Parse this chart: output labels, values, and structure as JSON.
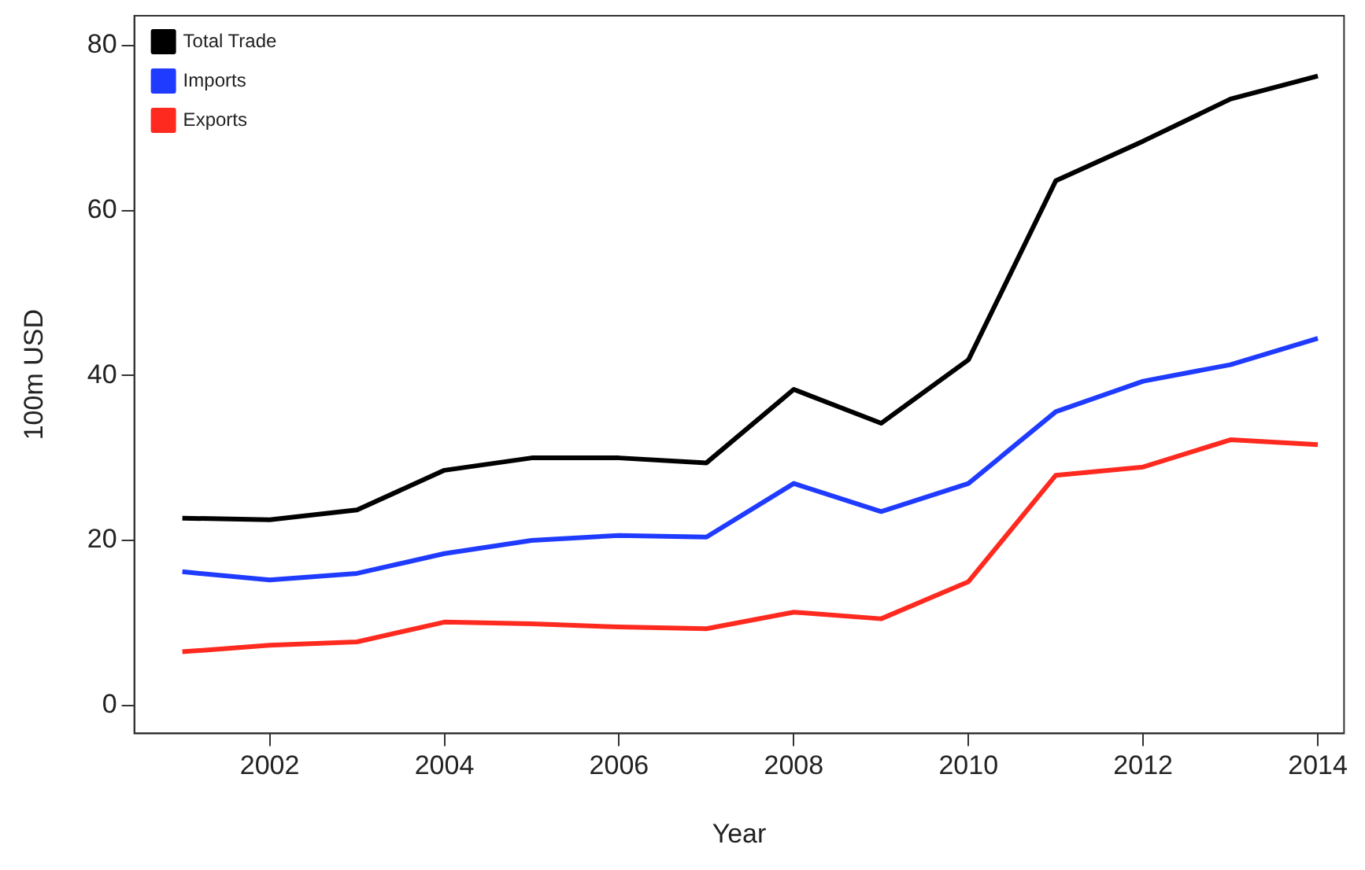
{
  "chart_data": {
    "type": "line",
    "xlabel": "Year",
    "ylabel": "100m USD",
    "x": [
      2001,
      2002,
      2003,
      2004,
      2005,
      2006,
      2007,
      2008,
      2009,
      2010,
      2011,
      2012,
      2013,
      2014
    ],
    "series": [
      {
        "name": "Total Trade",
        "color": "#000000",
        "values": [
          22.7,
          22.5,
          23.7,
          28.5,
          30,
          30,
          29.4,
          38.3,
          34.2,
          41.9,
          63.6,
          68.4,
          73.5,
          76.3
        ]
      },
      {
        "name": "Imports",
        "color": "#1f3bff",
        "values": [
          16.2,
          15.2,
          16,
          18.4,
          20,
          20.6,
          20.4,
          26.9,
          23.5,
          26.9,
          35.6,
          39.3,
          41.3,
          44.5
        ]
      },
      {
        "name": "Exports",
        "color": "#ff2a1f",
        "values": [
          6.5,
          7.3,
          7.7,
          10.1,
          9.9,
          9.5,
          9.3,
          11.3,
          10.5,
          15,
          27.9,
          28.9,
          32.2,
          31.6
        ]
      }
    ],
    "xlim": [
      2000.45,
      2014.3
    ],
    "xticks": [
      2002,
      2004,
      2006,
      2008,
      2010,
      2012,
      2014
    ],
    "ylim": [
      -3.4,
      83.6
    ],
    "yticks": [
      0,
      20,
      40,
      60,
      80
    ],
    "grid": false,
    "legend": "top left",
    "marker": "none",
    "line_style": "solid"
  }
}
